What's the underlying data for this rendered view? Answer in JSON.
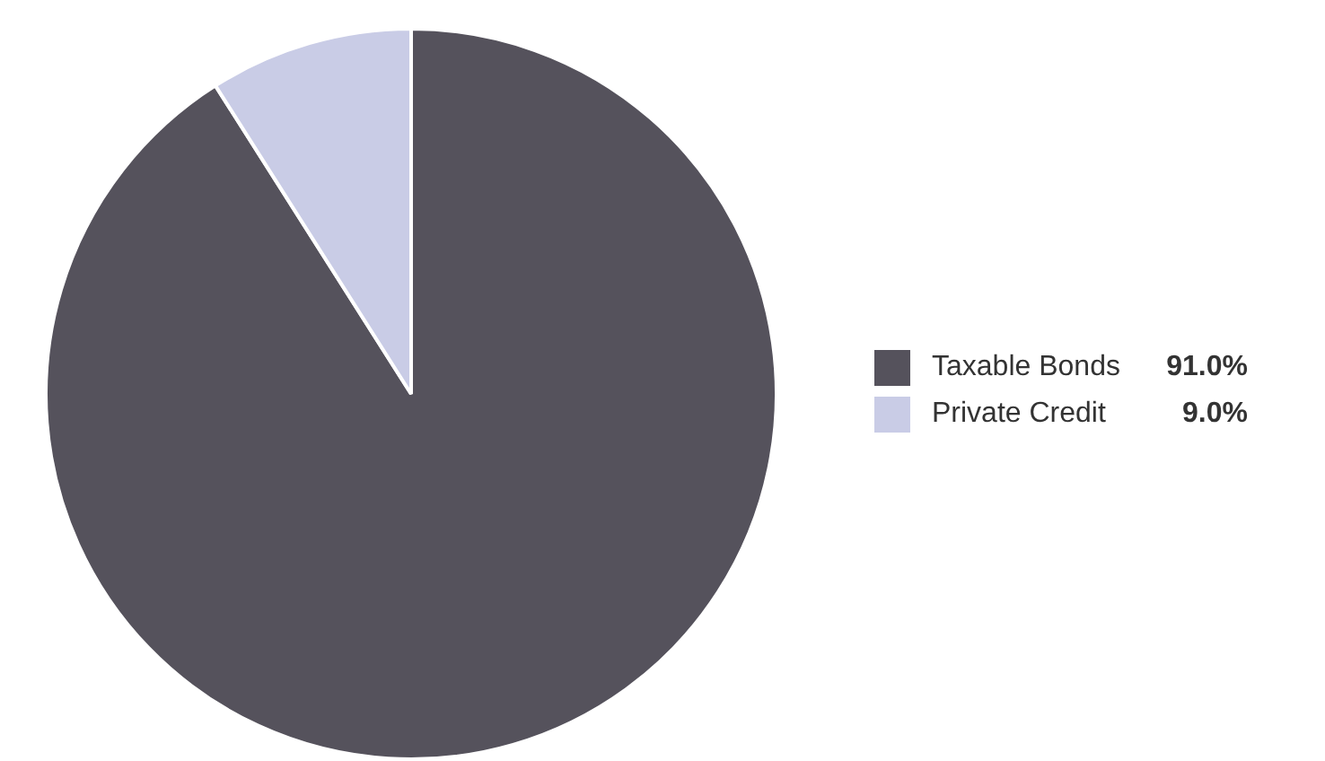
{
  "chart_data": {
    "type": "pie",
    "categories": [
      "Taxable Bonds",
      "Private Credit"
    ],
    "values": [
      91.0,
      9.0
    ],
    "colors": [
      "#55525c",
      "#c9cce6"
    ],
    "value_labels": [
      "91.0%",
      "9.0%"
    ],
    "legend": "right"
  }
}
